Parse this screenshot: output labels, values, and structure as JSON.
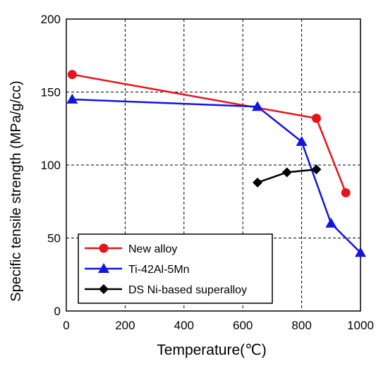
{
  "chart_data": {
    "type": "line",
    "title": "",
    "xlabel": "Temperature(℃)",
    "ylabel": "Specific tensile strength (MPa/g/cc)",
    "xlim": [
      0,
      1000
    ],
    "ylim": [
      0,
      200
    ],
    "x_ticks": [
      "0",
      "200",
      "400",
      "600",
      "800",
      "1000"
    ],
    "y_ticks": [
      "0",
      "50",
      "100",
      "150",
      "200"
    ],
    "grid": true,
    "legend_position": "bottom-left",
    "series": [
      {
        "name": "New alloy",
        "color": "#e8141c",
        "marker": "circle",
        "x": [
          20,
          850,
          950
        ],
        "y": [
          162,
          132,
          81
        ]
      },
      {
        "name": "Ti-42Al-5Mn",
        "color": "#1414e0",
        "marker": "triangle",
        "x": [
          20,
          650,
          800,
          900,
          1000
        ],
        "y": [
          145,
          140,
          116,
          60,
          40
        ]
      },
      {
        "name": "DS Ni-based superalloy",
        "color": "#000000",
        "marker": "diamond",
        "x": [
          650,
          750,
          850
        ],
        "y": [
          88,
          95,
          97
        ]
      }
    ]
  }
}
